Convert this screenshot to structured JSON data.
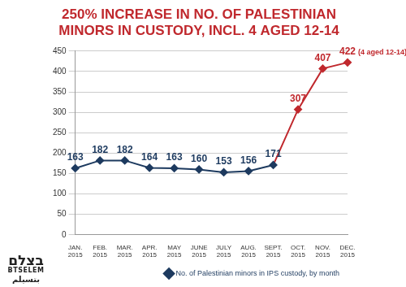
{
  "chart_data": {
    "type": "line",
    "title": [
      "250% INCREASE IN NO. OF PALESTINIAN",
      "MINORS IN CUSTODY, INCL. 4 AGED 12-14"
    ],
    "categories": [
      "JAN. 2015",
      "FEB. 2015",
      "MAR. 2015",
      "APR. 2015",
      "MAY 2015",
      "JUNE 2015",
      "JULY 2015",
      "AUG. 2015",
      "SEPT. 2015",
      "OCT. 2015",
      "NOV. 2015",
      "DEC. 2015"
    ],
    "series": [
      {
        "name": "No. of Palestinian minors in IPS custody, by month",
        "color": "#1d3a5f",
        "colors": [
          "#1d3a5f",
          "#1d3a5f",
          "#1d3a5f",
          "#1d3a5f",
          "#1d3a5f",
          "#1d3a5f",
          "#1d3a5f",
          "#1d3a5f",
          "#1d3a5f",
          "#c0282d",
          "#c0282d",
          "#c0282d"
        ],
        "marker": "diamond",
        "values": [
          163,
          182,
          182,
          164,
          163,
          160,
          153,
          156,
          171,
          307,
          407,
          422
        ]
      }
    ],
    "ylim": [
      0,
      450
    ],
    "yticks": [
      0,
      50,
      100,
      150,
      200,
      250,
      300,
      350,
      400,
      450
    ],
    "grid": true,
    "data_labels": true,
    "legend": "bottom right",
    "annotations": [
      {
        "category": "DEC. 2015",
        "text": "(4 aged 12-14)"
      }
    ],
    "logo": [
      "בצלם",
      "BTSELEM",
      "بتسيلم"
    ]
  }
}
